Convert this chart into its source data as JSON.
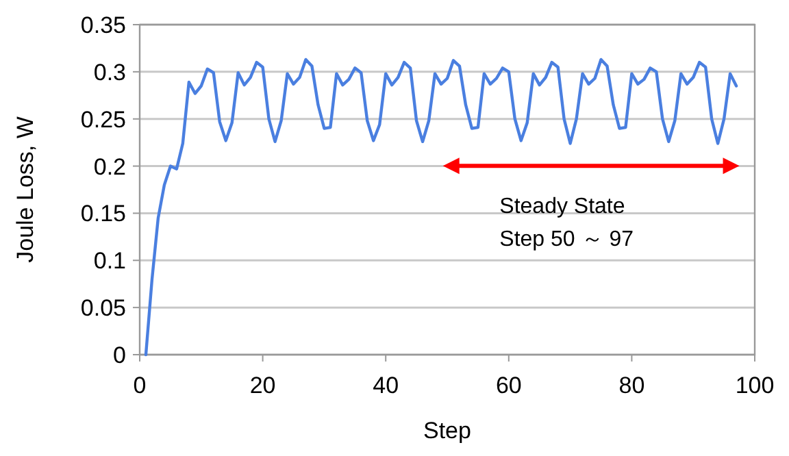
{
  "chart_data": {
    "type": "line",
    "xlabel": "Step",
    "ylabel": "Joule Loss, W",
    "x": [
      1,
      2,
      3,
      4,
      5,
      6,
      7,
      8,
      9,
      10,
      11,
      12,
      13,
      14,
      15,
      16,
      17,
      18,
      19,
      20,
      21,
      22,
      23,
      24,
      25,
      26,
      27,
      28,
      29,
      30,
      31,
      32,
      33,
      34,
      35,
      36,
      37,
      38,
      39,
      40,
      41,
      42,
      43,
      44,
      45,
      46,
      47,
      48,
      49,
      50,
      51,
      52,
      53,
      54,
      55,
      56,
      57,
      58,
      59,
      60,
      61,
      62,
      63,
      64,
      65,
      66,
      67,
      68,
      69,
      70,
      71,
      72,
      73,
      74,
      75,
      76,
      77,
      78,
      79,
      80,
      81,
      82,
      83,
      84,
      85,
      86,
      87,
      88,
      89,
      90,
      91,
      92,
      93,
      94,
      95,
      96,
      97
    ],
    "series": [
      {
        "color": "#4a7fe0",
        "values": [
          0,
          0.08,
          0.145,
          0.18,
          0.2,
          0.197,
          0.224,
          0.289,
          0.277,
          0.285,
          0.303,
          0.299,
          0.247,
          0.227,
          0.246,
          0.299,
          0.286,
          0.294,
          0.31,
          0.305,
          0.25,
          0.226,
          0.248,
          0.298,
          0.287,
          0.294,
          0.313,
          0.306,
          0.265,
          0.24,
          0.241,
          0.298,
          0.286,
          0.292,
          0.304,
          0.299,
          0.248,
          0.227,
          0.244,
          0.298,
          0.286,
          0.294,
          0.31,
          0.304,
          0.248,
          0.226,
          0.248,
          0.298,
          0.287,
          0.293,
          0.312,
          0.306,
          0.265,
          0.24,
          0.241,
          0.298,
          0.287,
          0.293,
          0.304,
          0.3,
          0.25,
          0.227,
          0.246,
          0.298,
          0.286,
          0.294,
          0.31,
          0.305,
          0.25,
          0.224,
          0.25,
          0.298,
          0.287,
          0.293,
          0.313,
          0.306,
          0.265,
          0.24,
          0.241,
          0.298,
          0.287,
          0.292,
          0.304,
          0.3,
          0.25,
          0.226,
          0.248,
          0.298,
          0.287,
          0.294,
          0.31,
          0.305,
          0.25,
          0.224,
          0.25,
          0.298,
          0.285
        ]
      }
    ],
    "xlim": [
      0,
      100
    ],
    "xticks": [
      0,
      20,
      40,
      60,
      80,
      100
    ],
    "ylim": [
      0,
      0.35
    ],
    "yticks": [
      0,
      0.05,
      0.1,
      0.15,
      0.2,
      0.25,
      0.3,
      0.35
    ],
    "grid": "y",
    "annotations": [
      "Steady State\nStep 50 ～ 97"
    ]
  }
}
